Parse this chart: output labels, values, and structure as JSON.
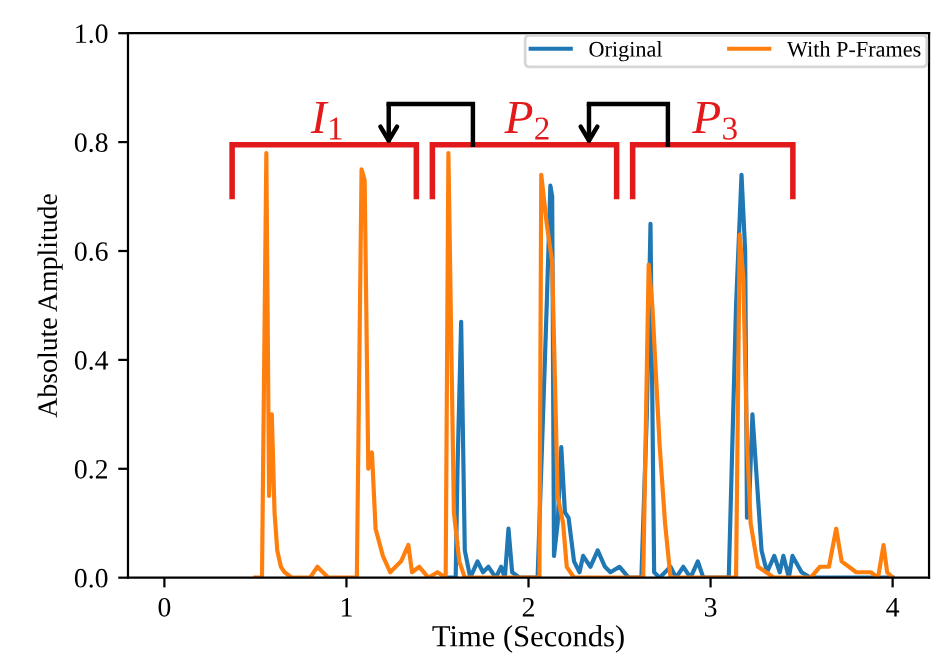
{
  "chart_data": {
    "type": "line",
    "xlabel": "Time (Seconds)",
    "ylabel": "Absolute Amplitude",
    "xlim": [
      -0.2,
      4.2
    ],
    "ylim": [
      0,
      1.0
    ],
    "xticks": [
      0,
      1,
      2,
      3,
      4
    ],
    "yticks": [
      {
        "value": 0,
        "label": "0.0"
      },
      0.2,
      0.4,
      0.6,
      0.8,
      {
        "value": 1,
        "label": "1.0"
      }
    ],
    "grid": false,
    "legend": "top right",
    "line_style": "solid",
    "marker": "none",
    "series": [
      {
        "name": "Original",
        "color": "#1f77b4",
        "x": [
          1.54,
          1.6,
          1.61,
          1.63,
          1.65,
          1.68,
          1.72,
          1.75,
          1.78,
          1.82,
          1.85,
          1.87,
          1.89,
          1.91,
          1.95,
          2.0,
          2.05,
          2.1,
          2.12,
          2.13,
          2.14,
          2.16,
          2.18,
          2.2,
          2.22,
          2.25,
          2.28,
          2.3,
          2.34,
          2.38,
          2.42,
          2.45,
          2.5,
          2.55,
          2.62,
          2.65,
          2.67,
          2.69,
          2.72,
          2.78,
          2.81,
          2.85,
          2.89,
          2.93,
          2.96,
          3.0,
          3.1,
          3.14,
          3.17,
          3.19,
          3.2,
          3.21,
          3.23,
          3.25,
          3.28,
          3.31,
          3.35,
          3.38,
          3.4,
          3.43,
          3.45,
          3.5,
          3.55,
          3.6,
          3.7,
          3.8,
          3.9,
          4.0
        ],
        "values": [
          0.0,
          0.0,
          0.2,
          0.47,
          0.05,
          0.0,
          0.03,
          0.01,
          0.02,
          0.0,
          0.02,
          0.0,
          0.09,
          0.01,
          0.0,
          0.0,
          0.0,
          0.5,
          0.72,
          0.7,
          0.04,
          0.1,
          0.24,
          0.12,
          0.11,
          0.03,
          0.01,
          0.04,
          0.02,
          0.05,
          0.02,
          0.01,
          0.02,
          0.0,
          0.0,
          0.3,
          0.65,
          0.01,
          0.0,
          0.02,
          0.0,
          0.02,
          0.0,
          0.03,
          0.0,
          0.0,
          0.0,
          0.5,
          0.74,
          0.6,
          0.11,
          0.12,
          0.3,
          0.2,
          0.05,
          0.01,
          0.04,
          0.01,
          0.04,
          0.0,
          0.04,
          0.01,
          0.0,
          0.0,
          0.0,
          0.0,
          0.0,
          0.0
        ]
      },
      {
        "name": "With P-Frames",
        "color": "#ff7f0e",
        "x": [
          0.5,
          0.536,
          0.56,
          0.575,
          0.59,
          0.605,
          0.62,
          0.64,
          0.66,
          0.7,
          0.8,
          0.84,
          0.9,
          1.0,
          1.057,
          1.083,
          1.1,
          1.12,
          1.14,
          1.16,
          1.2,
          1.24,
          1.3,
          1.34,
          1.36,
          1.4,
          1.45,
          1.5,
          1.545,
          1.56,
          1.59,
          1.62,
          1.65,
          1.8,
          2.0,
          2.06,
          2.07,
          2.1,
          2.13,
          2.16,
          2.19,
          2.21,
          2.25,
          2.5,
          2.63,
          2.66,
          2.68,
          2.72,
          2.75,
          2.78,
          3.0,
          3.14,
          3.16,
          3.18,
          3.2,
          3.22,
          3.26,
          3.35,
          3.55,
          3.6,
          3.65,
          3.69,
          3.72,
          3.8,
          3.88,
          3.92,
          3.95,
          3.97,
          4.0
        ],
        "values": [
          0.0,
          0.0,
          0.78,
          0.15,
          0.3,
          0.12,
          0.05,
          0.02,
          0.01,
          0.0,
          0.0,
          0.02,
          0.0,
          0.0,
          0.0,
          0.75,
          0.73,
          0.2,
          0.23,
          0.09,
          0.04,
          0.01,
          0.03,
          0.06,
          0.01,
          0.02,
          0.0,
          0.01,
          0.0,
          0.78,
          0.12,
          0.03,
          0.0,
          0.0,
          0.0,
          0.0,
          0.74,
          0.65,
          0.58,
          0.15,
          0.1,
          0.02,
          0.0,
          0.0,
          0.0,
          0.575,
          0.5,
          0.244,
          0.1,
          0.0,
          0.0,
          0.0,
          0.63,
          0.55,
          0.25,
          0.1,
          0.02,
          0.0,
          0.0,
          0.02,
          0.02,
          0.09,
          0.03,
          0.01,
          0.01,
          0.0,
          0.06,
          0.01,
          0.0
        ]
      }
    ],
    "annotations": [
      "I$_{1}$",
      "P$_{2}$",
      "P$_{3}$"
    ]
  }
}
